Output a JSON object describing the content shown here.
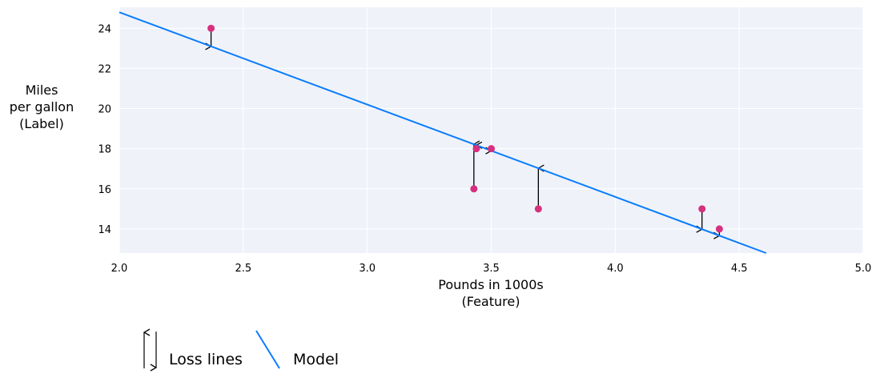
{
  "chart_data": {
    "type": "scatter",
    "title": "",
    "xlabel": [
      "Pounds in 1000s",
      "(Feature)"
    ],
    "ylabel": [
      "Miles",
      "per gallon",
      "(Label)"
    ],
    "xlim": [
      2.0,
      5.0
    ],
    "ylim": [
      12.8,
      25.05
    ],
    "xticks": [
      2.0,
      2.5,
      3.0,
      3.5,
      4.0,
      4.5,
      5.0
    ],
    "xtick_labels": [
      "2.0",
      "2.5",
      "3.0",
      "3.5",
      "4.0",
      "4.5",
      "5.0"
    ],
    "yticks": [
      14,
      16,
      18,
      20,
      22,
      24
    ],
    "ytick_labels": [
      "14",
      "16",
      "18",
      "20",
      "22",
      "24"
    ],
    "grid": true,
    "points": [
      {
        "x": 2.37,
        "y": 24
      },
      {
        "x": 3.43,
        "y": 16
      },
      {
        "x": 3.44,
        "y": 18
      },
      {
        "x": 3.5,
        "y": 18
      },
      {
        "x": 3.69,
        "y": 15
      },
      {
        "x": 4.35,
        "y": 15
      },
      {
        "x": 4.42,
        "y": 14
      }
    ],
    "model": {
      "intercept": 34.0,
      "slope": -4.6
    },
    "legend": {
      "placement": "bottom-left",
      "entries": [
        "Loss lines",
        "Model"
      ]
    },
    "colors": {
      "points": "#d6317f",
      "model": "#0a7cff",
      "loss": "#000000",
      "background": "#eff3f9",
      "grid": "#ffffff"
    }
  }
}
